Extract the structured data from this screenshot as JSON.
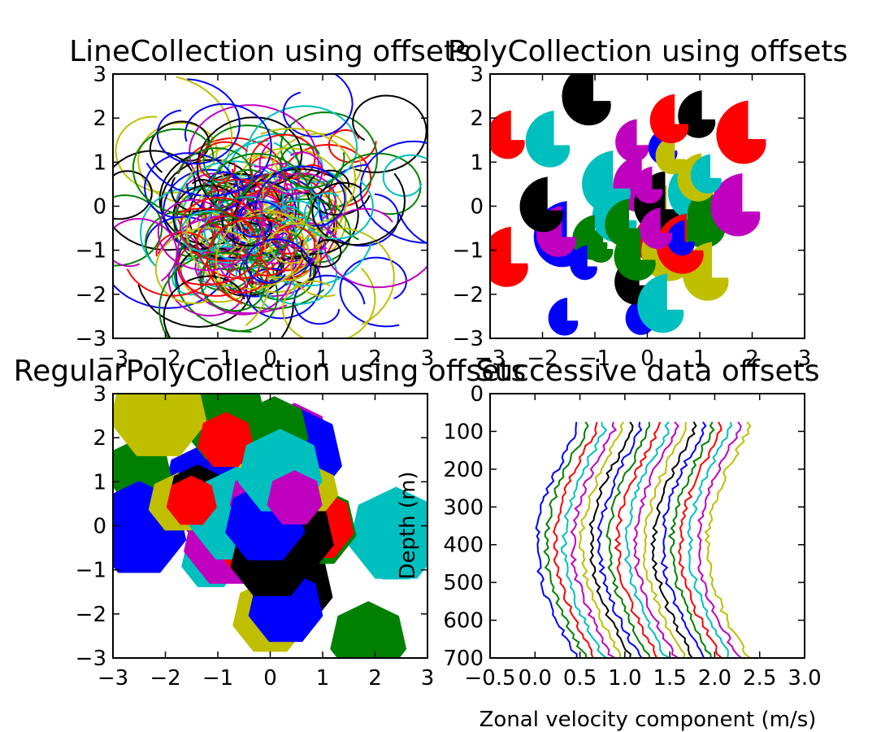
{
  "colors": {
    "cycle": [
      "#0000ff",
      "#008000",
      "#ff0000",
      "#00bfbf",
      "#bf00bf",
      "#bfbf00",
      "#000000"
    ]
  },
  "chart_data": [
    {
      "type": "line",
      "title": "LineCollection using offsets",
      "xlim": [
        -3,
        3
      ],
      "ylim": [
        -3,
        3
      ],
      "xticks": [
        "−3",
        "−2",
        "−1",
        "0",
        "1",
        "2",
        "3"
      ],
      "yticks": [
        "3",
        "2",
        "1",
        "0",
        "−1",
        "−2",
        "−3"
      ],
      "series_count": 150
    },
    {
      "type": "scatter",
      "title": "PolyCollection using offsets",
      "xlim": [
        -3,
        3
      ],
      "ylim": [
        -3,
        3
      ],
      "xticks": [
        "−3",
        "−2",
        "−1",
        "0",
        "1",
        "2",
        "3"
      ],
      "yticks": [
        "3",
        "2",
        "1",
        "0",
        "−1",
        "−2",
        "−3"
      ],
      "marker": "spiral polygon",
      "points": 40
    },
    {
      "type": "scatter",
      "title": "RegularPolyCollection using offsets",
      "xlim": [
        -3,
        3
      ],
      "ylim": [
        -3,
        3
      ],
      "xticks": [
        "−3",
        "−2",
        "−1",
        "0",
        "1",
        "2",
        "3"
      ],
      "yticks": [
        "3",
        "2",
        "1",
        "0",
        "−1",
        "−2",
        "−3"
      ],
      "marker": "heptagon",
      "points": 40
    },
    {
      "type": "line",
      "title": "Successive data offsets",
      "xlabel": "Zonal velocity component (m/s)",
      "ylabel": "Depth (m)",
      "xlim": [
        -0.5,
        3.0
      ],
      "ylim": [
        700,
        0
      ],
      "xticks": [
        "−0.5",
        "0.0",
        "0.5",
        "1.0",
        "1.5",
        "2.0",
        "2.5",
        "3.0"
      ],
      "yticks": [
        "0",
        "100",
        "200",
        "300",
        "400",
        "500",
        "600",
        "700"
      ],
      "series_count": 20,
      "offset_step": 0.1,
      "depth_range": [
        0,
        625
      ]
    }
  ]
}
